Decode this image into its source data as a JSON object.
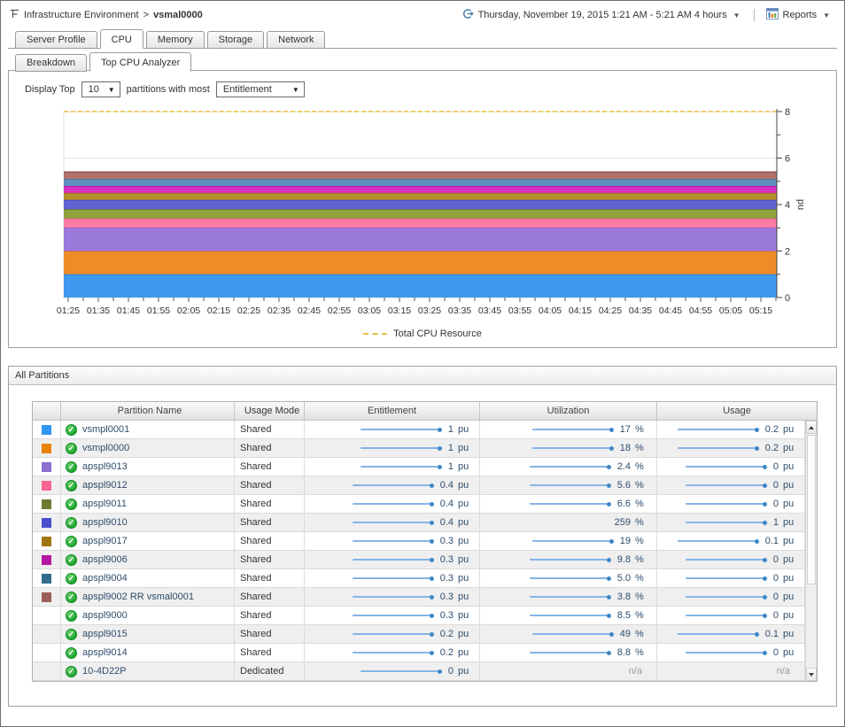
{
  "header": {
    "breadcrumb_root": "Infrastructure Environment",
    "breadcrumb_sep": ">",
    "breadcrumb_current": "vsmal0000",
    "timerange": "Thursday, November 19, 2015 1:21 AM - 5:21 AM 4 hours",
    "reports": "Reports"
  },
  "tabs": [
    {
      "label": "Server Profile",
      "active": false
    },
    {
      "label": "CPU",
      "active": true
    },
    {
      "label": "Memory",
      "active": false
    },
    {
      "label": "Storage",
      "active": false
    },
    {
      "label": "Network",
      "active": false
    }
  ],
  "subtabs": [
    {
      "label": "Breakdown",
      "active": false
    },
    {
      "label": "Top CPU Analyzer",
      "active": true
    }
  ],
  "controls": {
    "prefix": "Display Top",
    "top_count": "10",
    "middle": "partitions with most",
    "metric": "Entitlement"
  },
  "chart_data": {
    "type": "area",
    "stacked": true,
    "title": "",
    "xlabel": "",
    "ylabel": "pu",
    "ylim": [
      0,
      8
    ],
    "ytick_labels": [
      0,
      2,
      4,
      6,
      8
    ],
    "grid": true,
    "legend_position": "bottom",
    "x_labels": [
      "01:25",
      "01:35",
      "01:45",
      "01:55",
      "02:05",
      "02:15",
      "02:25",
      "02:35",
      "02:45",
      "02:55",
      "03:05",
      "03:15",
      "03:25",
      "03:35",
      "03:45",
      "03:55",
      "04:05",
      "04:15",
      "04:25",
      "04:35",
      "04:45",
      "04:55",
      "05:05",
      "05:15"
    ],
    "series": [
      {
        "name": "vsmpl0001",
        "value": 1.0,
        "color": "#3D9AF0",
        "edge": "#1a78cf"
      },
      {
        "name": "vsmpl0000",
        "value": 1.0,
        "color": "#F08C28",
        "edge": "#c96f10"
      },
      {
        "name": "apspl9013",
        "value": 1.0,
        "color": "#9B7ADC",
        "edge": "#7a57c2"
      },
      {
        "name": "apspl9012",
        "value": 0.4,
        "color": "#FB7CA4",
        "edge": "#e25585"
      },
      {
        "name": "apspl9011",
        "value": 0.4,
        "color": "#8EA23D",
        "edge": "#6c7c27"
      },
      {
        "name": "apspl9010",
        "value": 0.4,
        "color": "#6163D4",
        "edge": "#4446b6"
      },
      {
        "name": "apspl9017",
        "value": 0.3,
        "color": "#B38F28",
        "edge": "#8c6d10"
      },
      {
        "name": "apspl9006",
        "value": 0.3,
        "color": "#D72FC0",
        "edge": "#b016a0"
      },
      {
        "name": "apspl9004",
        "value": 0.3,
        "color": "#5F8FBF",
        "edge": "#3c6f99"
      },
      {
        "name": "apspl9002 RR vsmal0001",
        "value": 0.3,
        "color": "#B17069",
        "edge": "#8e544d"
      }
    ],
    "total_line": {
      "label": "Total CPU Resource",
      "value": 8,
      "color": "#f2bb3c",
      "style": "dashed"
    }
  },
  "table": {
    "title": "All Partitions",
    "na": "n/a",
    "columns": {
      "name": "Partition Name",
      "mode": "Usage Mode",
      "entitlement": "Entitlement",
      "utilization": "Utilization",
      "usage": "Usage"
    },
    "rows": [
      {
        "color": "#2E96F0",
        "name": "vsmpl0001",
        "mode": "Shared",
        "ent": {
          "val": "1",
          "unit": "pu",
          "spark": true
        },
        "util": {
          "val": "17",
          "unit": "%",
          "spark": true
        },
        "usage": {
          "val": "0.2",
          "unit": "pu",
          "spark": true
        }
      },
      {
        "color": "#E8820A",
        "name": "vsmpl0000",
        "mode": "Shared",
        "ent": {
          "val": "1",
          "unit": "pu",
          "spark": true
        },
        "util": {
          "val": "18",
          "unit": "%",
          "spark": true
        },
        "usage": {
          "val": "0.2",
          "unit": "pu",
          "spark": true
        }
      },
      {
        "color": "#8A6FD1",
        "name": "apspl9013",
        "mode": "Shared",
        "ent": {
          "val": "1",
          "unit": "pu",
          "spark": true
        },
        "util": {
          "val": "2.4",
          "unit": "%",
          "spark": true
        },
        "usage": {
          "val": "0",
          "unit": "pu",
          "spark": true
        }
      },
      {
        "color": "#FA6490",
        "name": "apspl9012",
        "mode": "Shared",
        "ent": {
          "val": "0.4",
          "unit": "pu",
          "spark": true
        },
        "util": {
          "val": "5.6",
          "unit": "%",
          "spark": true
        },
        "usage": {
          "val": "0",
          "unit": "pu",
          "spark": true
        }
      },
      {
        "color": "#6E7B2E",
        "name": "apspl9011",
        "mode": "Shared",
        "ent": {
          "val": "0.4",
          "unit": "pu",
          "spark": true
        },
        "util": {
          "val": "6.6",
          "unit": "%",
          "spark": true
        },
        "usage": {
          "val": "0",
          "unit": "pu",
          "spark": true
        }
      },
      {
        "color": "#4A50CC",
        "name": "apspl9010",
        "mode": "Shared",
        "ent": {
          "val": "0.4",
          "unit": "pu",
          "spark": true
        },
        "util": {
          "val": "259",
          "unit": "%",
          "spark": false
        },
        "usage": {
          "val": "1",
          "unit": "pu",
          "spark": true
        }
      },
      {
        "color": "#A07510",
        "name": "apspl9017",
        "mode": "Shared",
        "ent": {
          "val": "0.3",
          "unit": "pu",
          "spark": true
        },
        "util": {
          "val": "19",
          "unit": "%",
          "spark": true
        },
        "usage": {
          "val": "0.1",
          "unit": "pu",
          "spark": true
        }
      },
      {
        "color": "#B517A0",
        "name": "apspl9006",
        "mode": "Shared",
        "ent": {
          "val": "0.3",
          "unit": "pu",
          "spark": true
        },
        "util": {
          "val": "9.8",
          "unit": "%",
          "spark": true
        },
        "usage": {
          "val": "0",
          "unit": "pu",
          "spark": true
        }
      },
      {
        "color": "#336B8E",
        "name": "apspl9004",
        "mode": "Shared",
        "ent": {
          "val": "0.3",
          "unit": "pu",
          "spark": true
        },
        "util": {
          "val": "5.0",
          "unit": "%",
          "spark": true
        },
        "usage": {
          "val": "0",
          "unit": "pu",
          "spark": true
        }
      },
      {
        "color": "#9C5F57",
        "name": "apspl9002 RR vsmal0001",
        "mode": "Shared",
        "ent": {
          "val": "0.3",
          "unit": "pu",
          "spark": true
        },
        "util": {
          "val": "3.8",
          "unit": "%",
          "spark": true
        },
        "usage": {
          "val": "0",
          "unit": "pu",
          "spark": true
        }
      },
      {
        "color": null,
        "name": "apspl9000",
        "mode": "Shared",
        "ent": {
          "val": "0.3",
          "unit": "pu",
          "spark": true
        },
        "util": {
          "val": "8.5",
          "unit": "%",
          "spark": true
        },
        "usage": {
          "val": "0",
          "unit": "pu",
          "spark": true
        }
      },
      {
        "color": null,
        "name": "apspl9015",
        "mode": "Shared",
        "ent": {
          "val": "0.2",
          "unit": "pu",
          "spark": true
        },
        "util": {
          "val": "49",
          "unit": "%",
          "spark": true
        },
        "usage": {
          "val": "0.1",
          "unit": "pu",
          "spark": true
        }
      },
      {
        "color": null,
        "name": "apspl9014",
        "mode": "Shared",
        "ent": {
          "val": "0.2",
          "unit": "pu",
          "spark": true
        },
        "util": {
          "val": "8.8",
          "unit": "%",
          "spark": true
        },
        "usage": {
          "val": "0",
          "unit": "pu",
          "spark": true
        }
      },
      {
        "color": null,
        "name": "10-4D22P",
        "mode": "Dedicated",
        "ent": {
          "val": "0",
          "unit": "pu",
          "spark": true
        },
        "util": {
          "na": true
        },
        "usage": {
          "na": true
        }
      }
    ]
  }
}
